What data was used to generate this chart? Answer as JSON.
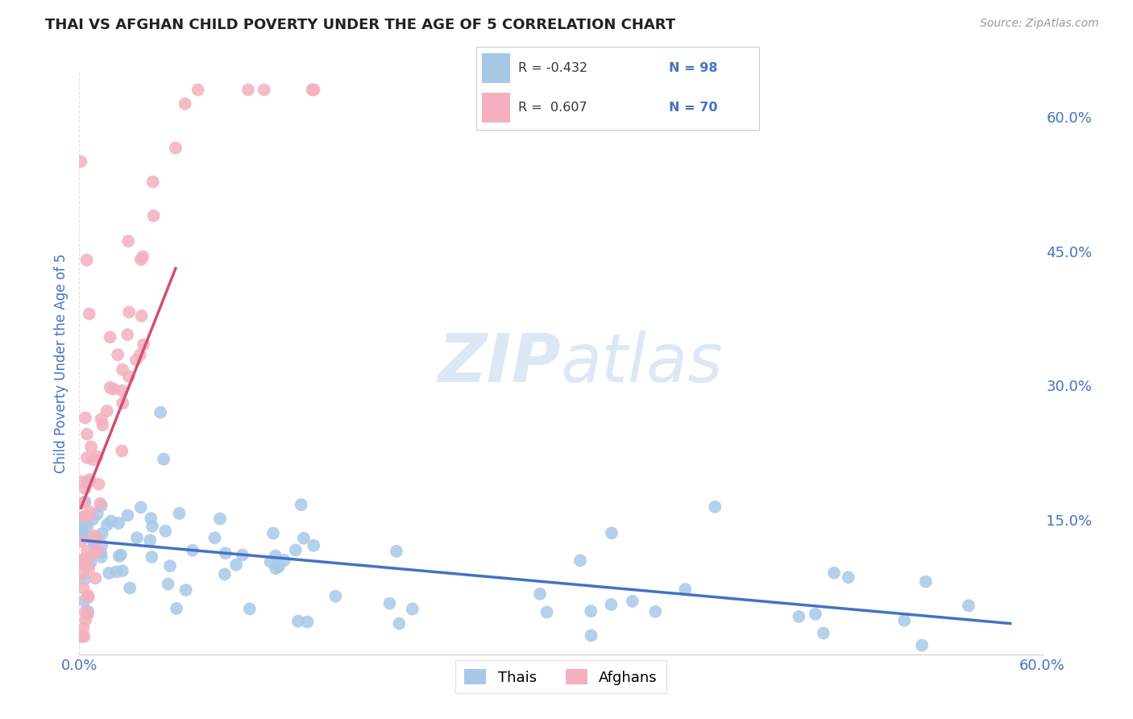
{
  "title": "THAI VS AFGHAN CHILD POVERTY UNDER THE AGE OF 5 CORRELATION CHART",
  "source": "Source: ZipAtlas.com",
  "ylabel": "Child Poverty Under the Age of 5",
  "right_yticks": [
    "60.0%",
    "45.0%",
    "30.0%",
    "15.0%"
  ],
  "right_ytick_vals": [
    0.6,
    0.45,
    0.3,
    0.15
  ],
  "thai_color": "#a8c8e8",
  "afghan_color": "#f4b0be",
  "thai_line_color": "#4472C4",
  "afghan_line_color": "#d05070",
  "watermark_zip": "ZIP",
  "watermark_atlas": "atlas",
  "watermark_color": "#dce8f5",
  "background_color": "#ffffff",
  "grid_color": "#cccccc",
  "title_color": "#222222",
  "axis_label_color": "#4472C4",
  "xlim": [
    0.0,
    0.6
  ],
  "ylim": [
    0.0,
    0.65
  ],
  "legend_entries": [
    {
      "color": "#a8c8e8",
      "r_text": "R = -0.432",
      "n_text": "N = 98"
    },
    {
      "color": "#f4b0be",
      "r_text": "R =  0.607",
      "n_text": "N = 70"
    }
  ]
}
